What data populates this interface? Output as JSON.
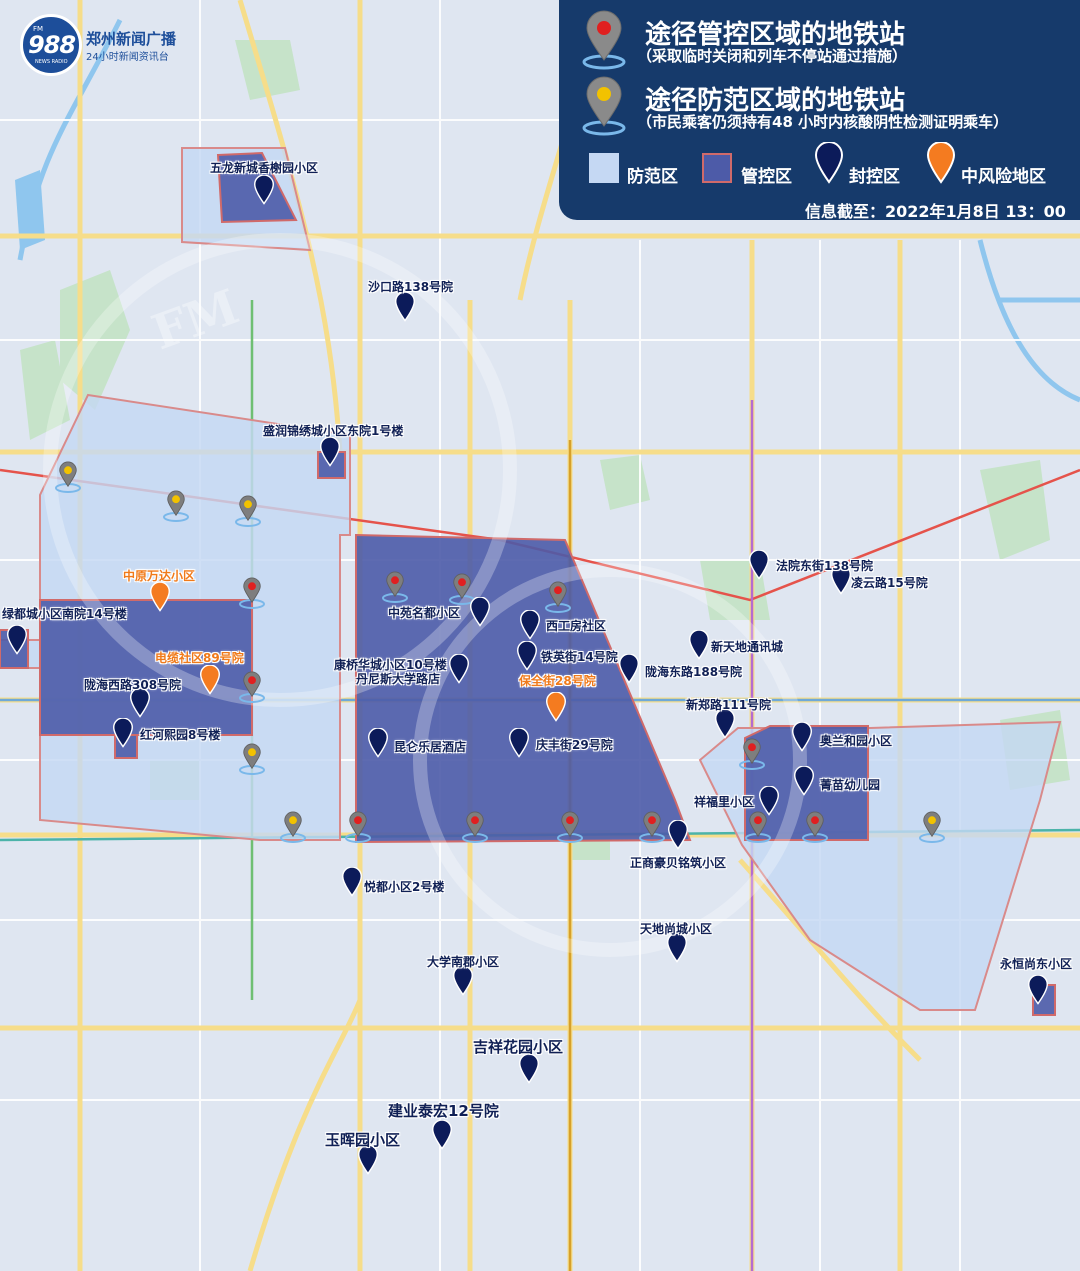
{
  "logo": {
    "number": "988",
    "fm_label": "FM",
    "sub_label": "NEWS RADIO",
    "station_name": "郑州新闻广播",
    "station_slogan": "24小时新闻资讯台"
  },
  "legend": {
    "title_controlled": "途径管控区域的地铁站",
    "note_controlled": "（采取临时关闭和列车不停站通过措施）",
    "title_prevention": "途径防范区域的地铁站",
    "note_prevention": "（市民乘客仍须持有48 小时内核酸阴性检测证明乘车）",
    "prevention_zone": "防范区",
    "controlled_zone": "管控区",
    "sealed_zone": "封控区",
    "medium_risk": "中风险地区",
    "info_time": "信息截至：2022年1月8日  13：00",
    "colors": {
      "prevention_fill": "#c5d8f3",
      "controlled_fill": "#4d5ba8",
      "sealed_pin": "#0c1b5a",
      "medium_pin": "#f47b20",
      "controlled_station": "#e02020",
      "prevention_station": "#f2c200",
      "panel_bg": "#163a6b"
    }
  },
  "sealed_locations": [
    "五龙新城香榭园小区",
    "沙口路138号院",
    "盛润锦绣城小区东院1号楼",
    "绿都城小区南院14号楼",
    "陇海西路308号院",
    "红河熙园8号楼",
    "中苑名都小区",
    "西工房社区",
    "铁英街14号院",
    "康桥华城小区10号楼",
    "丹尼斯大学路店",
    "昆仑乐居酒店",
    "庆丰街29号院",
    "陇海东路188号院",
    "法院东街138号院",
    "凌云路15号院",
    "新天地通讯城",
    "新郑路111号院",
    "奥兰和园小区",
    "菁苗幼儿园",
    "祥福里小区",
    "正商豪贝铭筑小区",
    "悦都小区2号楼",
    "天地尚城小区",
    "大学南郡小区",
    "吉祥花园小区",
    "建业泰宏12号院",
    "玉晖园小区",
    "永恒尚东小区"
  ],
  "medium_risk_locations": [
    "中原万达小区",
    "电缆社区89号院",
    "保全街28号院"
  ]
}
